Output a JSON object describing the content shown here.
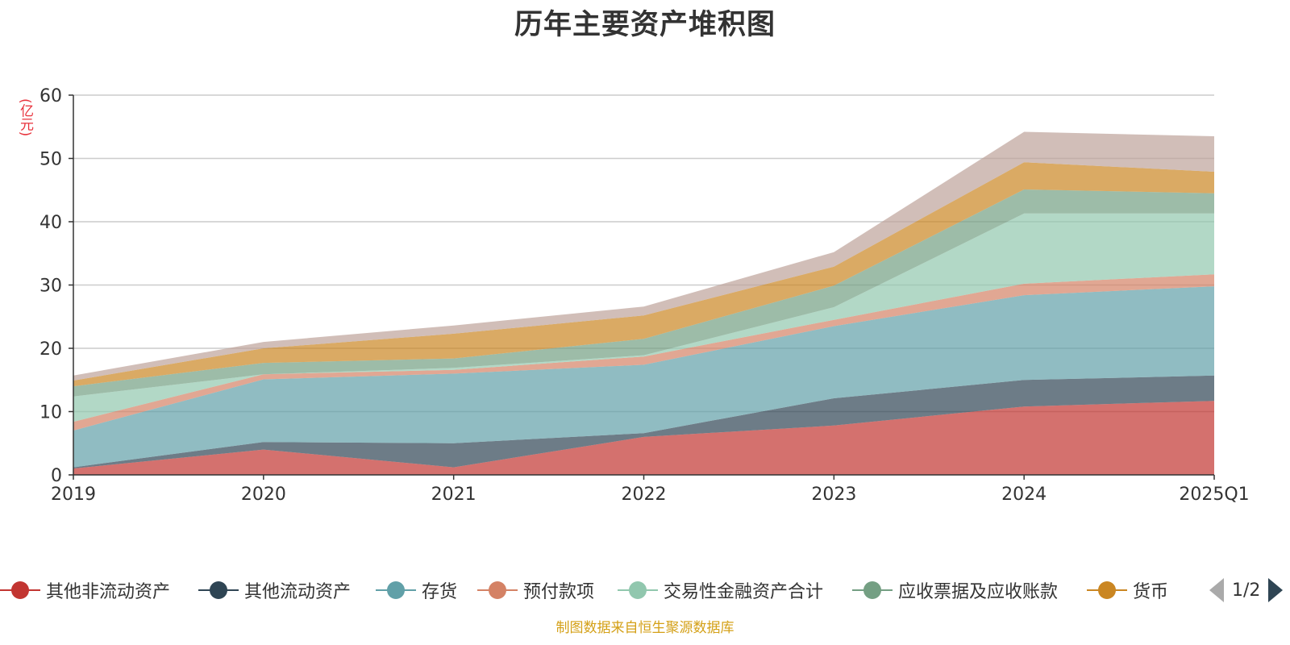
{
  "chart_data": {
    "type": "area",
    "stacked": true,
    "title": "历年主要资产堆积图",
    "unit_label": "(亿元)",
    "categories": [
      "2019",
      "2020",
      "2021",
      "2022",
      "2023",
      "2024",
      "2025Q1"
    ],
    "ylim": [
      0,
      60
    ],
    "yticks": [
      0,
      10,
      20,
      30,
      40,
      50,
      60
    ],
    "grid": true,
    "series": [
      {
        "name": "其他非流动资产",
        "color": "#c23531",
        "values": [
          1.0,
          4.0,
          1.2,
          6.0,
          7.8,
          10.8,
          11.7
        ]
      },
      {
        "name": "其他流动资产",
        "color": "#2f4554",
        "values": [
          0.2,
          1.2,
          3.8,
          0.6,
          4.3,
          4.2,
          4.0
        ]
      },
      {
        "name": "存货",
        "color": "#61a0a8",
        "values": [
          5.8,
          9.9,
          11.0,
          10.8,
          11.4,
          13.4,
          14.1
        ]
      },
      {
        "name": "预付款项",
        "color": "#d48265",
        "values": [
          1.4,
          0.8,
          0.6,
          1.3,
          1.0,
          1.8,
          1.9
        ]
      },
      {
        "name": "交易性金融资产合计",
        "color": "#91c7ae",
        "values": [
          4.0,
          0.0,
          0.3,
          0.2,
          2.0,
          11.1,
          9.6
        ]
      },
      {
        "name": "应收票据及应收账款",
        "color": "#749f83",
        "values": [
          1.6,
          1.8,
          1.5,
          2.6,
          3.4,
          3.8,
          3.2
        ]
      },
      {
        "name": "货币",
        "color": "#ca8622",
        "values": [
          0.9,
          2.3,
          3.9,
          3.7,
          3.0,
          4.3,
          3.4
        ]
      },
      {
        "name": "",
        "color": "#bda29a",
        "values": [
          0.8,
          1.0,
          1.3,
          1.4,
          2.3,
          4.8,
          5.6
        ]
      }
    ],
    "legend": {
      "position": "bottom",
      "page": "1/2"
    },
    "source_note": "制图数据来自恒生聚源数据库"
  }
}
